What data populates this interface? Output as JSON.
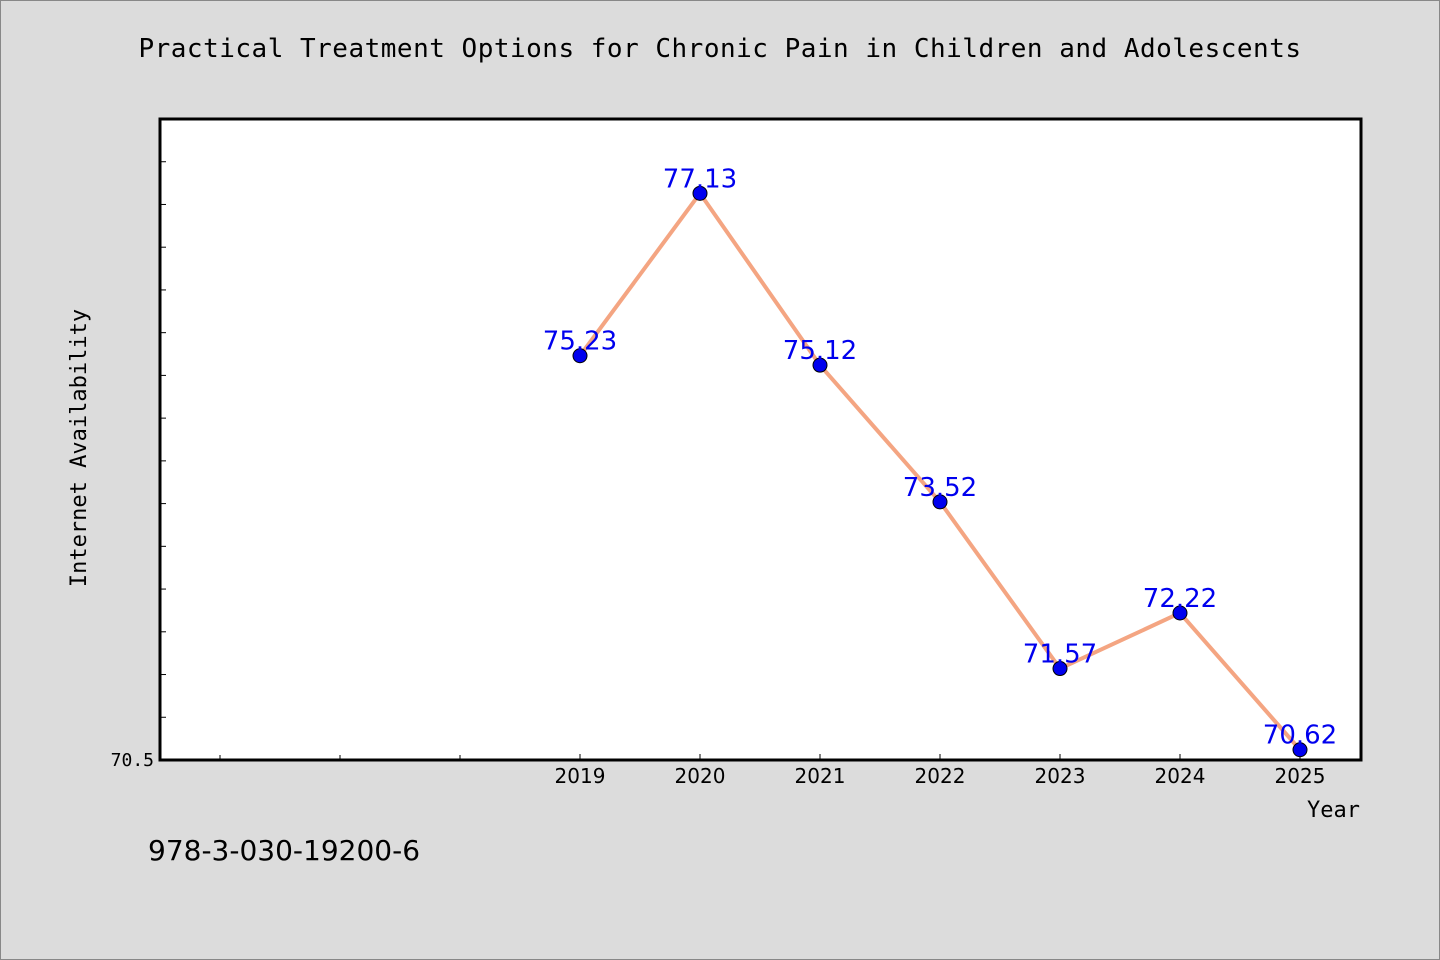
{
  "chart_data": {
    "type": "line",
    "title": "Practical Treatment Options for Chronic Pain in Children and Adolescents",
    "xlabel": "Year",
    "ylabel": "Internet Availability",
    "x": [
      "2019",
      "2020",
      "2021",
      "2022",
      "2023",
      "2024",
      "2025"
    ],
    "values": [
      75.23,
      77.13,
      75.12,
      73.52,
      71.57,
      72.22,
      70.62
    ],
    "data_labels": [
      "75.23",
      "77.13",
      "75.12",
      "73.52",
      "71.57",
      "72.22",
      "70.62"
    ],
    "y_tick_label": "70.5",
    "ylim": [
      70.5,
      78.0
    ],
    "grid": false,
    "colors": {
      "line": "#f4a582",
      "marker": "#0000ee",
      "data_label": "#0000ee"
    }
  },
  "footer": {
    "isbn": "978-3-030-19200-6"
  }
}
